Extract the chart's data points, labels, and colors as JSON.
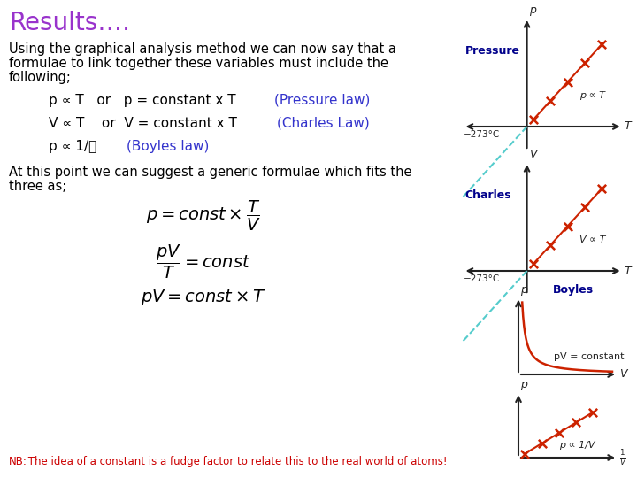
{
  "title": "Results….",
  "title_color": "#9933CC",
  "bg_color": "#ffffff",
  "text1_line1": "Using the graphical analysis method we can now say that a",
  "text1_line2": "formulae to link together these variables must include the",
  "text1_line3": "following;",
  "text1_color": "#000000",
  "eq1_black": "p ∝ T   or   p = constant x T  ",
  "eq1_colored": "(Pressure law)",
  "eq2_black": "V ∝ T    or  V = constant x T  ",
  "eq2_colored": "(Charles Law)",
  "eq3_black": "p ∝ 1/ｖ    ",
  "eq3_colored": "(Boyles law)",
  "eq_color": "#3333CC",
  "text2_line1": "At this point we can suggest a generic formulae which fits the",
  "text2_line2": "three as;",
  "text2_color": "#000000",
  "formula1": "$p = const \\times \\dfrac{T}{V}$",
  "formula2": "$\\dfrac{pV}{T} = const$",
  "formula3": "$pV = const \\times T$",
  "nb_label": "NB:",
  "nb_rest": " The idea of a constant is a fudge factor to relate this to the real world of atoms!",
  "nb_color": "#cc0000",
  "nb_label_color": "#cc0000",
  "dashed_color": "#55CCCC",
  "data_color": "#cc2200",
  "axis_color": "#222222",
  "label_color": "#00008B",
  "pressure_label": "Pressure",
  "charles_label": "Charles",
  "boyles_label": "Boyles"
}
